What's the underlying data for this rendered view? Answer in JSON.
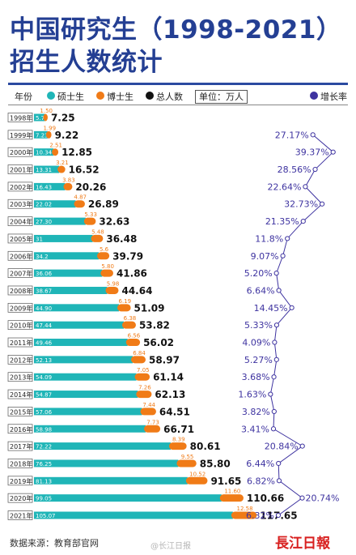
{
  "title_line1": "中国研究生（1998-2021）",
  "title_line2": "招生人数统计",
  "legend": {
    "year_label": "年份",
    "master_label": "硕士生",
    "doctor_label": "博士生",
    "total_label": "总人数",
    "unit_label": "单位：万人",
    "growth_label": "增长率"
  },
  "colors": {
    "title": "#243f93",
    "master": "#1fb5b7",
    "doctor": "#f07b17",
    "total": "#111111",
    "growth": "#3e33a0"
  },
  "footer": {
    "source": "数据来源：教育部官网",
    "watermark": "@长江日报",
    "logo": "長江日報"
  },
  "chart_data": {
    "type": "bar",
    "stacked": true,
    "orientation": "horizontal",
    "categories": [
      "1998年",
      "1999年",
      "2000年",
      "2001年",
      "2002年",
      "2003年",
      "2004年",
      "2005年",
      "2006年",
      "2007年",
      "2008年",
      "2009年",
      "2010年",
      "2011年",
      "2012年",
      "2013年",
      "2014年",
      "2015年",
      "2016年",
      "2017年",
      "2018年",
      "2019年",
      "2020年",
      "2021年"
    ],
    "series": [
      {
        "name": "硕士生",
        "values": [
          5.75,
          7.23,
          10.34,
          13.31,
          16.43,
          22.02,
          27.3,
          31,
          34.2,
          36.06,
          38.67,
          44.9,
          47.44,
          49.46,
          52.13,
          54.09,
          54.87,
          57.06,
          58.98,
          72.22,
          76.25,
          81.13,
          99.05,
          105.07
        ],
        "labels": [
          "5.75",
          "7.23",
          "10.34",
          "13.31",
          "16.43",
          "22.02",
          "27.30",
          "31",
          "34.2",
          "36.06",
          "38.67",
          "44.90",
          "47.44",
          "49.46",
          "52.13",
          "54.09",
          "54.87",
          "57.06",
          "58.98",
          "72.22",
          "76.25",
          "81.13",
          "99.05",
          "105.07"
        ]
      },
      {
        "name": "博士生",
        "values": [
          1.5,
          1.99,
          2.51,
          3.21,
          3.83,
          4.87,
          5.33,
          5.48,
          5.6,
          5.8,
          5.98,
          6.19,
          6.38,
          6.56,
          6.84,
          7.05,
          7.26,
          7.44,
          7.73,
          8.39,
          9.55,
          10.52,
          11.6,
          12.58
        ],
        "labels": [
          "1.50",
          "1.99",
          "2.51",
          "3.21",
          "3.83",
          "4.87",
          "5.33",
          "5.48",
          "5.6",
          "5.80",
          "5.98",
          "6.19",
          "6.38",
          "6.56",
          "6.84",
          "7.05",
          "7.26",
          "7.44",
          "7.73",
          "8.39",
          "9.55",
          "10.52",
          "11.60",
          "12.58"
        ]
      }
    ],
    "totals": [
      7.25,
      9.22,
      12.85,
      16.52,
      20.26,
      26.89,
      32.63,
      36.48,
      39.79,
      41.86,
      44.64,
      51.09,
      53.82,
      56.02,
      58.97,
      61.14,
      62.13,
      64.51,
      66.71,
      80.61,
      85.8,
      91.65,
      110.66,
      117.65
    ],
    "total_labels": [
      "7.25",
      "9.22",
      "12.85",
      "16.52",
      "20.26",
      "26.89",
      "32.63",
      "36.48",
      "39.79",
      "41.86",
      "44.64",
      "51.09",
      "53.82",
      "56.02",
      "58.97",
      "61.14",
      "62.13",
      "64.51",
      "66.71",
      "80.61",
      "85.80",
      "91.65",
      "110.66",
      "117.65"
    ],
    "growth_rate": {
      "name": "增长率",
      "values": [
        null,
        27.17,
        39.37,
        28.56,
        22.64,
        32.73,
        21.35,
        11.8,
        9.07,
        5.2,
        6.64,
        14.45,
        5.33,
        4.09,
        5.27,
        3.68,
        1.63,
        3.82,
        3.41,
        20.84,
        6.44,
        6.82,
        20.74,
        6.32
      ],
      "labels": [
        "",
        "27.17%",
        "39.37%",
        "28.56%",
        "22.64%",
        "32.73%",
        "21.35%",
        "11.8%",
        "9.07%",
        "5.20%",
        "6.64%",
        "14.45%",
        "5.33%",
        "4.09%",
        "5.27%",
        "3.68%",
        "1.63%",
        "3.82%",
        "3.41%",
        "20.84%",
        "6.44%",
        "6.82%",
        "20.74%",
        "6.32%"
      ]
    }
  }
}
